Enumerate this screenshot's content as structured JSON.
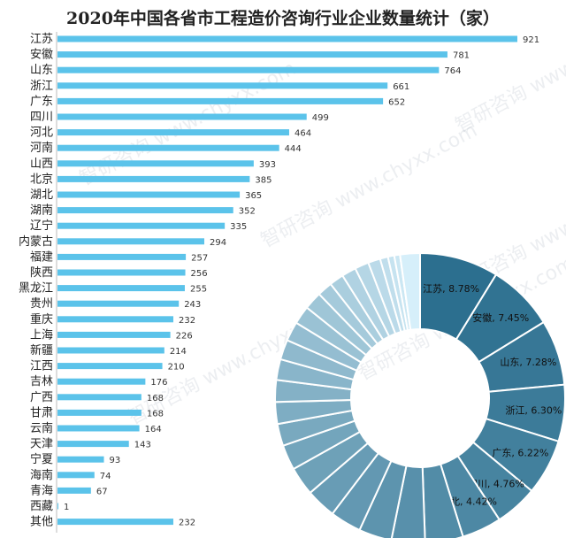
{
  "chart_data": [
    {
      "type": "bar",
      "orientation": "horizontal",
      "title": "2020年中国各省市工程造价咨询行业企业数量统计（家）",
      "categories": [
        "江苏",
        "安徽",
        "山东",
        "浙江",
        "广东",
        "四川",
        "河北",
        "河南",
        "山西",
        "北京",
        "湖北",
        "湖南",
        "辽宁",
        "内蒙古",
        "福建",
        "陕西",
        "黑龙江",
        "贵州",
        "重庆",
        "上海",
        "新疆",
        "江西",
        "吉林",
        "广西",
        "甘肃",
        "云南",
        "天津",
        "宁夏",
        "海南",
        "青海",
        "西藏",
        "其他"
      ],
      "values": [
        921,
        781,
        764,
        661,
        652,
        499,
        464,
        444,
        393,
        385,
        365,
        352,
        335,
        294,
        257,
        256,
        255,
        243,
        232,
        226,
        214,
        210,
        176,
        168,
        168,
        164,
        143,
        93,
        74,
        67,
        1,
        232
      ],
      "xlim": [
        0,
        1000
      ],
      "grid": false,
      "bar_color": "#5bc3ea"
    },
    {
      "type": "pie",
      "style": "donut",
      "categories": [
        "江苏",
        "安徽",
        "山东",
        "浙江",
        "广东",
        "四川",
        "河北",
        "河南",
        "山西",
        "北京",
        "湖北",
        "湖南",
        "辽宁",
        "内蒙古",
        "福建",
        "陕西",
        "黑龙江",
        "贵州",
        "重庆",
        "上海",
        "新疆",
        "江西",
        "吉林",
        "广西",
        "甘肃",
        "云南",
        "天津",
        "宁夏",
        "海南",
        "青海",
        "西藏",
        "其他"
      ],
      "values": [
        921,
        781,
        764,
        661,
        652,
        499,
        464,
        444,
        393,
        385,
        365,
        352,
        335,
        294,
        257,
        256,
        255,
        243,
        232,
        226,
        214,
        210,
        176,
        168,
        168,
        164,
        143,
        93,
        74,
        67,
        1,
        232
      ],
      "labels": [
        "江苏, 8.78%",
        "安徽, 7.45%",
        "山东, 7.28%",
        "浙江, 6.30%",
        "广东, 6.22%",
        "四川, 4.76%",
        "河北, 4.42%"
      ],
      "colors": {
        "dark": "#2c6f8f",
        "light": "#d6effa"
      }
    }
  ],
  "watermark": "智研咨询 www.chyxx.com"
}
